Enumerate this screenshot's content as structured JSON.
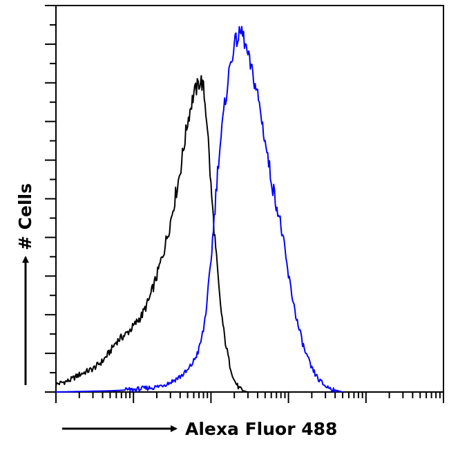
{
  "chart_data": {
    "type": "line",
    "title": "",
    "xlabel": "Alexa Fluor 488",
    "ylabel": "# Cells",
    "x_scale": "log",
    "xlim": [
      1,
      100000
    ],
    "ylim": [
      0,
      100
    ],
    "grid": false,
    "legend": "none",
    "series": [
      {
        "color": "#000000",
        "x": [
          1,
          1.5,
          2,
          3,
          4,
          5,
          6,
          8,
          10,
          13,
          16,
          20,
          25,
          30,
          35,
          40,
          45,
          50,
          55,
          60,
          65,
          70,
          75,
          80,
          90,
          100,
          115,
          130,
          150,
          175,
          200,
          230,
          260,
          300
        ],
        "y": [
          2,
          3,
          4.5,
          6,
          8,
          10.5,
          13,
          15,
          17,
          20,
          24,
          30,
          37,
          44,
          51,
          57,
          64,
          70,
          74,
          77,
          78.5,
          80,
          80.5,
          78.5,
          69,
          53,
          37,
          24,
          14,
          7,
          3,
          1,
          0.3,
          0
        ]
      },
      {
        "color": "#0000ff",
        "x": [
          1,
          5,
          10,
          20,
          30,
          40,
          50,
          60,
          70,
          80,
          90,
          100,
          110,
          125,
          150,
          175,
          200,
          250,
          300,
          400,
          500,
          600,
          800,
          1000,
          1300,
          1600,
          2000,
          2500,
          3000,
          4000,
          5000
        ],
        "y": [
          0,
          0.3,
          0.6,
          1.3,
          2.5,
          4,
          5.5,
          8,
          11,
          16,
          24,
          34,
          45,
          60,
          74,
          84,
          90,
          93.5,
          87,
          77,
          65,
          55,
          43,
          30,
          18,
          11,
          6,
          3,
          1.5,
          0.5,
          0
        ]
      }
    ]
  }
}
